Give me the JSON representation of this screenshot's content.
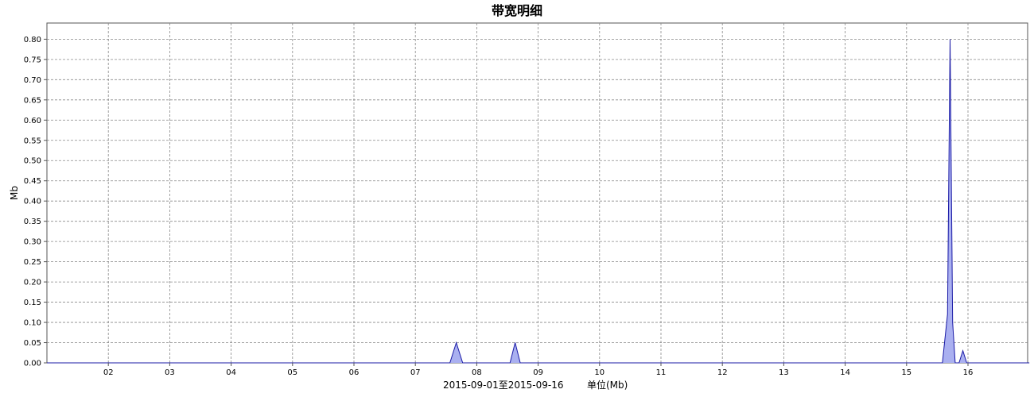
{
  "chart_data": {
    "type": "area",
    "title": "带宽明细",
    "xlabel": "2015-09-01至2015-09-16",
    "unit_label": "单位(Mb)",
    "ylabel": "Mb",
    "x_range": [
      "2015-09-01",
      "2015-09-16"
    ],
    "x_ticks": [
      "02",
      "03",
      "04",
      "05",
      "06",
      "07",
      "08",
      "09",
      "10",
      "11",
      "12",
      "13",
      "14",
      "15",
      "16"
    ],
    "y_ticks": [
      "0.00",
      "0.05",
      "0.10",
      "0.15",
      "0.20",
      "0.25",
      "0.30",
      "0.35",
      "0.40",
      "0.45",
      "0.50",
      "0.55",
      "0.60",
      "0.65",
      "0.70",
      "0.75",
      "0.80"
    ],
    "ylim": [
      0,
      0.84
    ],
    "grid": true,
    "colors": {
      "line": "#1a1aa6",
      "fill": "#aab0f0",
      "grid": "#888888"
    },
    "series": [
      {
        "values": [
          {
            "x": "2015-09-01 00:00",
            "y": 0
          },
          {
            "x": "2015-09-07 13:30",
            "y": 0
          },
          {
            "x": "2015-09-07 16:00",
            "y": 0.05
          },
          {
            "x": "2015-09-07 18:30",
            "y": 0
          },
          {
            "x": "2015-09-08 13:00",
            "y": 0
          },
          {
            "x": "2015-09-08 15:00",
            "y": 0.05
          },
          {
            "x": "2015-09-08 17:00",
            "y": 0
          },
          {
            "x": "2015-09-15 14:00",
            "y": 0
          },
          {
            "x": "2015-09-15 16:00",
            "y": 0.12
          },
          {
            "x": "2015-09-15 17:00",
            "y": 0.8
          },
          {
            "x": "2015-09-15 18:00",
            "y": 0.1
          },
          {
            "x": "2015-09-15 19:00",
            "y": 0
          },
          {
            "x": "2015-09-15 20:30",
            "y": 0
          },
          {
            "x": "2015-09-15 22:00",
            "y": 0.03
          },
          {
            "x": "2015-09-15 23:30",
            "y": 0
          },
          {
            "x": "2015-09-16 23:59",
            "y": 0
          }
        ]
      }
    ]
  }
}
